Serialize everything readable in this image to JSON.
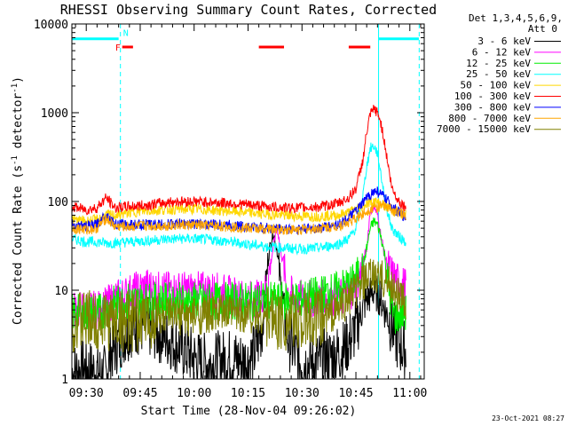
{
  "chart_data": {
    "type": "line",
    "title": "RHESSI Observing Summary Count Rates, Corrected",
    "xlabel": "Start Time (28-Nov-04 09:26:02)",
    "ylabel_main": "Corrected Count Rate (s",
    "ylabel_sup1": "-1",
    "ylabel_mid": " detector",
    "ylabel_sup2": "-1",
    "ylabel_end": ")",
    "yscale": "log",
    "ylim": [
      1,
      10000
    ],
    "xlim": [
      26.0,
      124.0
    ],
    "xlim_units": "minutes after 09:00",
    "yticks": [
      {
        "value": 1,
        "label": "1"
      },
      {
        "value": 10,
        "label": "10"
      },
      {
        "value": 100,
        "label": "100"
      },
      {
        "value": 1000,
        "label": "1000"
      },
      {
        "value": 10000,
        "label": "10000"
      }
    ],
    "xticks": [
      {
        "value": 30,
        "label": "09:30"
      },
      {
        "value": 45,
        "label": "09:45"
      },
      {
        "value": 60,
        "label": "10:00"
      },
      {
        "value": 75,
        "label": "10:15"
      },
      {
        "value": 90,
        "label": "10:30"
      },
      {
        "value": 105,
        "label": "10:45"
      },
      {
        "value": 120,
        "label": "11:00"
      }
    ],
    "legend_header": [
      "Det 1,3,4,5,6,9,",
      "Att 0"
    ],
    "legend_position": "right",
    "series": [
      {
        "name": "3 - 6 keV",
        "color": "#000000",
        "x": [
          26,
          30,
          33,
          35.5,
          36,
          37,
          40,
          43,
          46,
          49,
          52,
          55,
          58,
          61,
          64,
          67,
          70,
          73,
          75,
          77,
          79,
          80,
          81,
          82,
          83,
          84,
          86,
          89,
          92,
          95,
          98,
          101,
          104,
          106,
          108,
          110,
          111,
          112,
          113,
          114,
          115,
          116,
          117,
          119
        ],
        "y": [
          1.2,
          1.3,
          1.2,
          1.1,
          1.5,
          2,
          3,
          4,
          4,
          3.5,
          3,
          2.5,
          2,
          1.6,
          1.5,
          1.6,
          1.7,
          1.6,
          1.6,
          2,
          4,
          12,
          30,
          45,
          30,
          12,
          3,
          1.6,
          1.5,
          1.6,
          1.8,
          2,
          3,
          5,
          8,
          10,
          9,
          8,
          6,
          5,
          4,
          3,
          2.5,
          2
        ]
      },
      {
        "name": "6 - 12 keV",
        "color": "#ff00ff",
        "x": [
          26,
          30,
          33,
          35,
          38,
          41,
          44,
          47,
          50,
          55,
          60,
          65,
          70,
          74,
          78,
          80,
          82,
          83,
          84,
          86,
          88,
          92,
          96,
          100,
          103,
          106,
          108,
          109,
          110,
          111,
          112,
          113,
          114,
          115,
          117,
          119
        ],
        "y": [
          6,
          6,
          6,
          6.5,
          8,
          9,
          10,
          11,
          10,
          10,
          10,
          10,
          9,
          8,
          8,
          10,
          30,
          55,
          30,
          10,
          8,
          8,
          8,
          8,
          9,
          14,
          30,
          80,
          90,
          70,
          40,
          25,
          18,
          15,
          12,
          11
        ]
      },
      {
        "name": "12 - 25 keV",
        "color": "#00ee00",
        "x": [
          26,
          30,
          33,
          35,
          38,
          42,
          46,
          50,
          55,
          60,
          65,
          70,
          75,
          80,
          85,
          90,
          95,
          100,
          104,
          107,
          108,
          109,
          110,
          111,
          112,
          113,
          114,
          115,
          116,
          118,
          119
        ],
        "y": [
          5.5,
          5.5,
          5.5,
          6,
          7,
          7.5,
          7.5,
          7.5,
          7.5,
          7.5,
          7.5,
          7.5,
          7.5,
          7.5,
          7.5,
          8,
          9,
          10,
          12,
          18,
          30,
          50,
          60,
          55,
          40,
          25,
          12,
          6,
          5,
          5.5,
          5.5
        ]
      },
      {
        "name": "25 - 50 keV",
        "color": "#00ffff",
        "x": [
          26,
          30,
          33,
          35.5,
          38,
          42,
          46,
          50,
          55,
          60,
          65,
          70,
          75,
          80,
          85,
          90,
          95,
          100,
          103,
          105,
          107,
          108,
          109,
          110,
          111,
          112,
          113,
          114,
          115,
          117,
          119
        ],
        "y": [
          38,
          35,
          35,
          34,
          34,
          35,
          36,
          37,
          38,
          38,
          37,
          35,
          33,
          31,
          30,
          29,
          30,
          33,
          38,
          50,
          120,
          250,
          400,
          420,
          350,
          200,
          110,
          70,
          50,
          40,
          35
        ]
      },
      {
        "name": "50 - 100 keV",
        "color": "#ffd700",
        "x": [
          26,
          30,
          33,
          35.5,
          38,
          42,
          46,
          50,
          55,
          60,
          65,
          70,
          75,
          80,
          85,
          90,
          95,
          100,
          103,
          106,
          108,
          110,
          112,
          114,
          116,
          119
        ],
        "y": [
          62,
          60,
          62,
          70,
          70,
          75,
          78,
          80,
          82,
          82,
          80,
          78,
          75,
          72,
          70,
          68,
          68,
          70,
          75,
          85,
          95,
          100,
          95,
          85,
          75,
          70
        ]
      },
      {
        "name": "100 - 300 keV",
        "color": "#ff0000",
        "x": [
          26,
          30,
          33,
          35.5,
          38,
          42,
          46,
          50,
          55,
          60,
          65,
          70,
          75,
          80,
          85,
          90,
          95,
          100,
          103,
          105,
          107,
          108,
          109,
          110,
          111,
          112,
          113,
          114,
          115,
          117,
          119
        ],
        "y": [
          88,
          80,
          85,
          110,
          85,
          88,
          90,
          95,
          100,
          100,
          98,
          95,
          92,
          88,
          85,
          85,
          87,
          95,
          110,
          140,
          300,
          600,
          950,
          1100,
          1000,
          750,
          450,
          250,
          140,
          100,
          85
        ]
      },
      {
        "name": "300 - 800 keV",
        "color": "#0000ff",
        "x": [
          26,
          30,
          33,
          35.5,
          38,
          42,
          46,
          50,
          55,
          60,
          65,
          70,
          75,
          80,
          85,
          90,
          95,
          100,
          103,
          106,
          108,
          110,
          111,
          112,
          114,
          116,
          119
        ],
        "y": [
          55,
          52,
          55,
          72,
          55,
          55,
          55,
          55,
          56,
          56,
          55,
          54,
          52,
          50,
          49,
          49,
          50,
          55,
          65,
          85,
          110,
          130,
          130,
          120,
          100,
          80,
          65
        ]
      },
      {
        "name": "800 - 7000 keV",
        "color": "#ffa500",
        "x": [
          26,
          30,
          33,
          35.5,
          38,
          42,
          46,
          50,
          55,
          60,
          65,
          70,
          75,
          80,
          85,
          90,
          95,
          100,
          103,
          106,
          108,
          110,
          112,
          114,
          116,
          119
        ],
        "y": [
          50,
          48,
          50,
          65,
          52,
          52,
          53,
          53,
          54,
          54,
          53,
          52,
          50,
          49,
          48,
          48,
          50,
          53,
          58,
          68,
          78,
          85,
          88,
          85,
          78,
          70
        ]
      },
      {
        "name": "7000 - 15000 keV",
        "color": "#808000",
        "x": [
          26,
          30,
          35,
          40,
          45,
          50,
          55,
          60,
          65,
          70,
          75,
          80,
          85,
          90,
          95,
          100,
          104,
          107,
          109,
          111,
          113,
          115,
          117,
          119
        ],
        "y": [
          4.5,
          4.5,
          4.5,
          4.5,
          4.5,
          5,
          5,
          5,
          5.5,
          5.5,
          5.5,
          5,
          4.5,
          4.5,
          4.8,
          6,
          9,
          12,
          14,
          14,
          13,
          11,
          9,
          7
        ]
      }
    ],
    "flag_bars": [
      {
        "color": "#00ffff",
        "x": [
          26.0,
          39.0
        ],
        "y": 6800
      },
      {
        "color": "#00ffff",
        "x": [
          111.3,
          122.5
        ],
        "y": 6800
      },
      {
        "color": "#ff0000",
        "x": [
          40.0,
          43.0
        ],
        "y": 5500
      },
      {
        "color": "#ff0000",
        "x": [
          78.0,
          85.0
        ],
        "y": 5500
      },
      {
        "color": "#ff0000",
        "x": [
          103.0,
          109.0
        ],
        "y": 5500
      }
    ],
    "flag_labels": [
      {
        "text": "F",
        "color": "#ff0000",
        "x": 38.8,
        "y": 5500
      },
      {
        "text": "N",
        "color": "#00ffff",
        "x": 41.0,
        "y": 8000
      }
    ],
    "vlines": [
      {
        "x": 39.5,
        "color": "#00ffff",
        "dash": true
      },
      {
        "x": 111.3,
        "color": "#00ffff",
        "dash": false
      },
      {
        "x": 122.6,
        "color": "#00ffff",
        "dash": true
      }
    ],
    "grid": false,
    "timestamp": "23-Oct-2021 08:27"
  }
}
